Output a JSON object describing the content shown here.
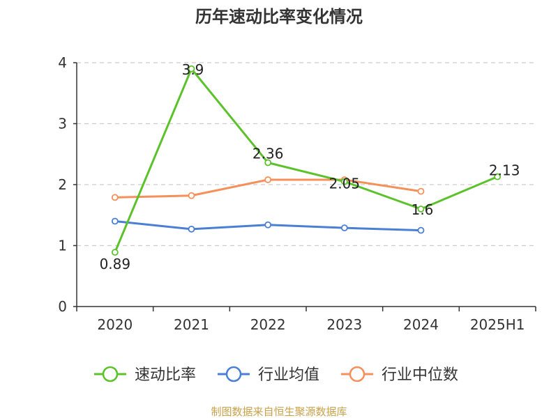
{
  "chart_data": {
    "type": "line",
    "title": "历年速动比率变化情况",
    "categories": [
      "2020",
      "2021",
      "2022",
      "2023",
      "2024",
      "2025H1"
    ],
    "ylim": [
      0,
      4
    ],
    "yticks": [
      "0",
      "1",
      "2",
      "3",
      "4"
    ],
    "grid": true,
    "legend_position": "bottom",
    "series": [
      {
        "name": "速动比率",
        "color": "#5cc22c",
        "values": [
          0.89,
          3.9,
          2.36,
          2.05,
          1.6,
          2.13
        ],
        "labels": [
          "0.89",
          "3.9",
          "2.36",
          "2.05",
          "1.6",
          "2.13"
        ]
      },
      {
        "name": "行业均值",
        "color": "#4a7fd6",
        "values": [
          1.4,
          1.27,
          1.34,
          1.29,
          1.25,
          null
        ]
      },
      {
        "name": "行业中位数",
        "color": "#f5905a",
        "values": [
          1.79,
          1.82,
          2.08,
          2.08,
          1.89,
          null
        ]
      }
    ]
  },
  "footer": {
    "source": "制图数据来自恒生聚源数据库"
  }
}
